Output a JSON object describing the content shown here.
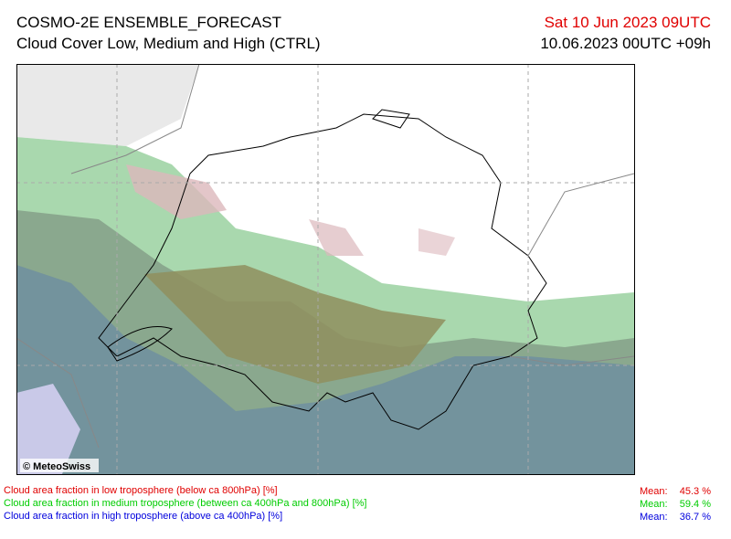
{
  "header": {
    "title": "COSMO-2E ENSEMBLE_FORECAST",
    "subtitle": "Cloud Cover Low, Medium and High (CTRL)",
    "valid_time": "Sat 10 Jun 2023 09UTC",
    "run_time": "10.06.2023 00UTC +09h"
  },
  "map": {
    "credit": "© MeteoSwiss"
  },
  "legend": [
    {
      "label": "Cloud area fraction in low troposphere (below ca 800hPa) [%]",
      "mean_label": "Mean:",
      "mean": "45.3 %",
      "color": "#e00000"
    },
    {
      "label": "Cloud area fraction in medium troposphere (between ca 400hPa and 800hPa) [%]",
      "mean_label": "Mean:",
      "mean": "59.4 %",
      "color": "#00cc00"
    },
    {
      "label": "Cloud area fraction in high troposphere (above ca 400hPa) [%]",
      "mean_label": "Mean:",
      "mean": "36.7 %",
      "color": "#0000dd"
    }
  ]
}
